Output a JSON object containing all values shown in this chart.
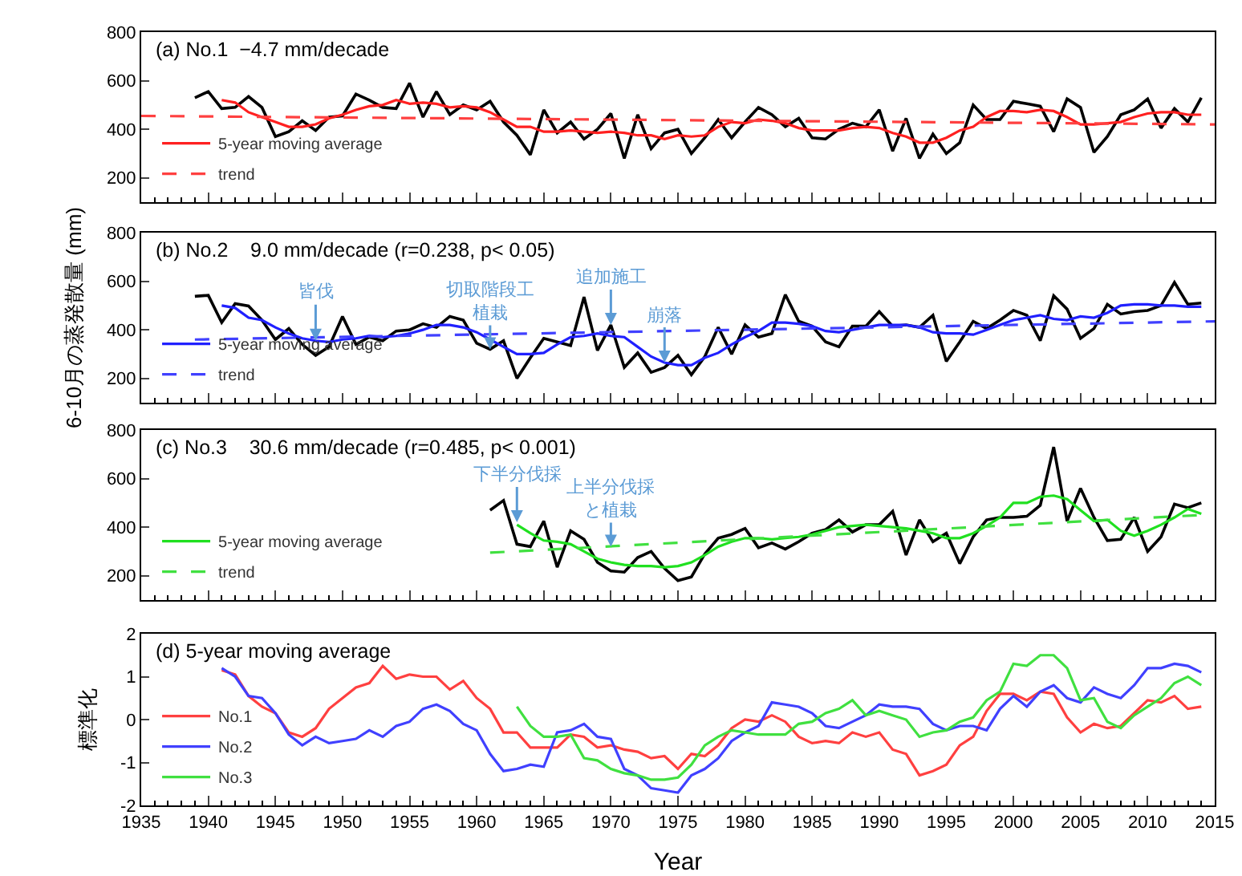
{
  "chart_data": [
    {
      "type": "line",
      "title": "(a) No.1  −4.7 mm/decade",
      "x": [
        1939,
        1940,
        1941,
        1942,
        1943,
        1944,
        1945,
        1946,
        1947,
        1948,
        1949,
        1950,
        1951,
        1952,
        1953,
        1954,
        1955,
        1956,
        1957,
        1958,
        1959,
        1960,
        1961,
        1962,
        1963,
        1964,
        1965,
        1966,
        1967,
        1968,
        1969,
        1970,
        1971,
        1972,
        1973,
        1974,
        1975,
        1976,
        1977,
        1978,
        1979,
        1980,
        1981,
        1982,
        1983,
        1984,
        1985,
        1986,
        1987,
        1988,
        1989,
        1990,
        1991,
        1992,
        1993,
        1994,
        1995,
        1996,
        1997,
        1998,
        1999,
        2000,
        2001,
        2002,
        2003,
        2004,
        2005,
        2006,
        2007,
        2008,
        2009,
        2010,
        2011,
        2012,
        2013,
        2014
      ],
      "series": [
        {
          "color": "#000000",
          "values": [
            530,
            555,
            485,
            490,
            535,
            490,
            370,
            390,
            435,
            395,
            450,
            455,
            545,
            520,
            490,
            485,
            590,
            450,
            555,
            460,
            500,
            480,
            515,
            430,
            375,
            295,
            480,
            385,
            430,
            360,
            400,
            465,
            280,
            460,
            320,
            385,
            400,
            300,
            365,
            440,
            365,
            430,
            490,
            460,
            410,
            445,
            365,
            360,
            400,
            425,
            410,
            480,
            310,
            445,
            280,
            380,
            300,
            345,
            500,
            440,
            440,
            515,
            505,
            495,
            390,
            525,
            490,
            305,
            370,
            460,
            480,
            525,
            405,
            485,
            430,
            530
          ]
        },
        {
          "name": "5-year moving average",
          "color": "#ff2020",
          "values": [
            null,
            null,
            520,
            510,
            470,
            450,
            430,
            410,
            410,
            420,
            445,
            460,
            480,
            495,
            500,
            520,
            505,
            510,
            505,
            490,
            495,
            490,
            470,
            440,
            410,
            410,
            390,
            390,
            395,
            390,
            385,
            390,
            385,
            375,
            375,
            360,
            375,
            370,
            375,
            410,
            430,
            425,
            440,
            435,
            425,
            405,
            395,
            395,
            395,
            405,
            410,
            405,
            385,
            370,
            345,
            345,
            365,
            395,
            410,
            450,
            475,
            475,
            470,
            480,
            475,
            450,
            420,
            420,
            425,
            430,
            450,
            465,
            470,
            470,
            460,
            460
          ]
        },
        {
          "name": "trend",
          "color": "#ff4040",
          "line_style": "dashed",
          "x": [
            1935,
            2015
          ],
          "values": [
            455,
            420
          ]
        }
      ],
      "xlim": [
        1935,
        2015
      ],
      "xticks": [
        1935,
        1940,
        1945,
        1950,
        1955,
        1960,
        1965,
        1970,
        1975,
        1980,
        1985,
        1990,
        1995,
        2000,
        2005,
        2010,
        2015
      ],
      "ylim": [
        100,
        800
      ],
      "yticks": [
        200,
        400,
        600,
        800
      ],
      "tick_labels": "y",
      "legend": "bottom left",
      "marker": "none"
    },
    {
      "type": "line",
      "title": "(b) No.2    9.0 mm/decade (r=0.238, p< 0.05)",
      "ylabel": "6-10月の蒸発散量 (mm)",
      "x": [
        1939,
        1940,
        1941,
        1942,
        1943,
        1944,
        1945,
        1946,
        1947,
        1948,
        1949,
        1950,
        1951,
        1952,
        1953,
        1954,
        1955,
        1956,
        1957,
        1958,
        1959,
        1960,
        1961,
        1962,
        1963,
        1964,
        1965,
        1966,
        1967,
        1968,
        1969,
        1970,
        1971,
        1972,
        1973,
        1974,
        1975,
        1976,
        1977,
        1978,
        1979,
        1980,
        1981,
        1982,
        1983,
        1984,
        1985,
        1986,
        1987,
        1988,
        1989,
        1990,
        1991,
        1992,
        1993,
        1994,
        1995,
        1996,
        1997,
        1998,
        1999,
        2000,
        2001,
        2002,
        2003,
        2004,
        2005,
        2006,
        2007,
        2008,
        2009,
        2010,
        2011,
        2012,
        2013,
        2014
      ],
      "series": [
        {
          "color": "#000000",
          "values": [
            538,
            542,
            430,
            508,
            498,
            440,
            360,
            405,
            340,
            295,
            330,
            455,
            340,
            370,
            355,
            395,
            400,
            425,
            410,
            455,
            440,
            345,
            320,
            355,
            200,
            285,
            365,
            350,
            335,
            535,
            315,
            420,
            245,
            305,
            225,
            245,
            295,
            215,
            290,
            410,
            300,
            420,
            370,
            385,
            545,
            435,
            415,
            350,
            330,
            415,
            415,
            475,
            415,
            420,
            410,
            460,
            270,
            350,
            435,
            405,
            440,
            480,
            460,
            355,
            540,
            485,
            365,
            405,
            505,
            465,
            475,
            480,
            500,
            595,
            505,
            510
          ]
        },
        {
          "name": "5-year moving average",
          "color": "#2020ff",
          "values": [
            null,
            null,
            500,
            490,
            450,
            440,
            410,
            385,
            365,
            355,
            350,
            360,
            365,
            375,
            370,
            375,
            385,
            400,
            420,
            420,
            410,
            390,
            360,
            330,
            300,
            300,
            305,
            340,
            370,
            375,
            385,
            375,
            370,
            330,
            290,
            265,
            255,
            255,
            285,
            305,
            340,
            370,
            395,
            430,
            430,
            425,
            415,
            395,
            390,
            400,
            410,
            420,
            420,
            420,
            410,
            390,
            385,
            385,
            380,
            400,
            420,
            440,
            450,
            460,
            445,
            440,
            455,
            450,
            470,
            500,
            505,
            505,
            500,
            500,
            495,
            495
          ]
        },
        {
          "name": "trend",
          "color": "#4040ff",
          "line_style": "dashed",
          "x": [
            1939,
            2015
          ],
          "values": [
            360,
            435
          ]
        }
      ],
      "annotations": [
        {
          "text": "皆伐",
          "x": 1948,
          "y": 355
        },
        {
          "text": "切取階段工植栽",
          "x": 1961,
          "y": 320
        },
        {
          "text": "追加施工",
          "x": 1970,
          "y": 420
        },
        {
          "text": "崩落",
          "x": 1974,
          "y": 265
        }
      ],
      "xlim": [
        1935,
        2015
      ],
      "xticks": [
        1935,
        1940,
        1945,
        1950,
        1955,
        1960,
        1965,
        1970,
        1975,
        1980,
        1985,
        1990,
        1995,
        2000,
        2005,
        2010,
        2015
      ],
      "ylim": [
        100,
        800
      ],
      "yticks": [
        200,
        400,
        600,
        800
      ],
      "tick_labels": "y",
      "legend": "bottom left",
      "marker": "none"
    },
    {
      "type": "line",
      "title": "(c) No.3    30.6 mm/decade (r=0.485, p< 0.001)",
      "x": [
        1961,
        1962,
        1963,
        1964,
        1965,
        1966,
        1967,
        1968,
        1969,
        1970,
        1971,
        1972,
        1973,
        1974,
        1975,
        1976,
        1977,
        1978,
        1979,
        1980,
        1981,
        1982,
        1983,
        1984,
        1985,
        1986,
        1987,
        1988,
        1989,
        1990,
        1991,
        1992,
        1993,
        1994,
        1995,
        1996,
        1997,
        1998,
        1999,
        2000,
        2001,
        2002,
        2003,
        2004,
        2005,
        2006,
        2007,
        2008,
        2009,
        2010,
        2011,
        2012,
        2013,
        2014
      ],
      "series": [
        {
          "color": "#000000",
          "values": [
            470,
            510,
            330,
            320,
            425,
            235,
            385,
            350,
            255,
            220,
            215,
            275,
            300,
            230,
            180,
            195,
            290,
            355,
            370,
            395,
            315,
            335,
            310,
            340,
            375,
            390,
            430,
            380,
            410,
            410,
            465,
            285,
            430,
            340,
            375,
            250,
            360,
            430,
            440,
            440,
            445,
            490,
            730,
            425,
            560,
            440,
            345,
            350,
            440,
            300,
            360,
            495,
            480,
            500
          ]
        },
        {
          "name": "5-year moving average",
          "color": "#20e020",
          "values": [
            null,
            null,
            410,
            375,
            345,
            340,
            330,
            300,
            270,
            255,
            245,
            240,
            240,
            235,
            240,
            255,
            285,
            320,
            340,
            355,
            355,
            350,
            355,
            360,
            370,
            385,
            400,
            405,
            410,
            405,
            400,
            395,
            385,
            375,
            355,
            355,
            375,
            405,
            440,
            500,
            500,
            525,
            530,
            515,
            470,
            425,
            430,
            385,
            365,
            385,
            410,
            440,
            475,
            455
          ]
        },
        {
          "name": "trend",
          "color": "#40e040",
          "line_style": "dashed",
          "x": [
            1961,
            2014
          ],
          "values": [
            295,
            450
          ]
        }
      ],
      "annotations": [
        {
          "text": "下半分伐採",
          "x": 1963,
          "y": 420
        },
        {
          "text": "上半分伐採と植栽",
          "x": 1970,
          "y": 320
        }
      ],
      "xlim": [
        1935,
        2015
      ],
      "xticks": [
        1935,
        1940,
        1945,
        1950,
        1955,
        1960,
        1965,
        1970,
        1975,
        1980,
        1985,
        1990,
        1995,
        2000,
        2005,
        2010,
        2015
      ],
      "ylim": [
        100,
        800
      ],
      "yticks": [
        200,
        400,
        600,
        800
      ],
      "tick_labels": "y",
      "legend": "bottom left",
      "marker": "none"
    },
    {
      "type": "line",
      "title": "(d) 5-year moving average",
      "xlabel": "Year",
      "ylabel": "標準化",
      "x": [
        1941,
        1942,
        1943,
        1944,
        1945,
        1946,
        1947,
        1948,
        1949,
        1950,
        1951,
        1952,
        1953,
        1954,
        1955,
        1956,
        1957,
        1958,
        1959,
        1960,
        1961,
        1962,
        1963,
        1964,
        1965,
        1966,
        1967,
        1968,
        1969,
        1970,
        1971,
        1972,
        1973,
        1974,
        1975,
        1976,
        1977,
        1978,
        1979,
        1980,
        1981,
        1982,
        1983,
        1984,
        1985,
        1986,
        1987,
        1988,
        1989,
        1990,
        1991,
        1992,
        1993,
        1994,
        1995,
        1996,
        1997,
        1998,
        1999,
        2000,
        2001,
        2002,
        2003,
        2004,
        2005,
        2006,
        2007,
        2008,
        2009,
        2010,
        2011,
        2012,
        2013,
        2014
      ],
      "series": [
        {
          "name": "No.1",
          "color": "#ff4040",
          "values": [
            1.15,
            1.05,
            0.55,
            0.3,
            0.15,
            -0.3,
            -0.4,
            -0.2,
            0.25,
            0.5,
            0.75,
            0.85,
            1.25,
            0.95,
            1.05,
            1.0,
            1.0,
            0.7,
            0.9,
            0.5,
            0.25,
            -0.3,
            -0.3,
            -0.65,
            -0.65,
            -0.65,
            -0.35,
            -0.4,
            -0.65,
            -0.6,
            -0.7,
            -0.75,
            -0.9,
            -0.85,
            -1.15,
            -0.8,
            -0.85,
            -0.6,
            -0.2,
            0.0,
            -0.05,
            0.1,
            -0.05,
            -0.4,
            -0.55,
            -0.5,
            -0.55,
            -0.3,
            -0.4,
            -0.3,
            -0.7,
            -0.8,
            -1.3,
            -1.2,
            -1.05,
            -0.6,
            -0.4,
            0.2,
            0.6,
            0.6,
            0.45,
            0.65,
            0.6,
            0.05,
            -0.3,
            -0.1,
            -0.2,
            -0.15,
            0.15,
            0.45,
            0.4,
            0.55,
            0.25,
            0.3
          ]
        },
        {
          "name": "No.2",
          "color": "#4040ff",
          "values": [
            1.2,
            1.0,
            0.55,
            0.5,
            0.15,
            -0.35,
            -0.6,
            -0.4,
            -0.55,
            -0.5,
            -0.45,
            -0.25,
            -0.4,
            -0.15,
            -0.05,
            0.25,
            0.35,
            0.2,
            -0.1,
            -0.25,
            -0.8,
            -1.2,
            -1.15,
            -1.05,
            -1.1,
            -0.3,
            -0.25,
            -0.1,
            -0.4,
            -0.45,
            -1.15,
            -1.3,
            -1.6,
            -1.65,
            -1.7,
            -1.3,
            -1.15,
            -0.9,
            -0.5,
            -0.3,
            -0.15,
            0.4,
            0.35,
            0.3,
            0.15,
            -0.15,
            -0.2,
            -0.05,
            0.1,
            0.35,
            0.3,
            0.3,
            0.25,
            -0.1,
            -0.25,
            -0.15,
            -0.15,
            -0.25,
            0.25,
            0.55,
            0.3,
            0.65,
            0.8,
            0.5,
            0.4,
            0.75,
            0.6,
            0.5,
            0.8,
            1.2,
            1.2,
            1.3,
            1.25,
            1.1
          ]
        },
        {
          "name": "No.3",
          "color": "#40e040",
          "values": [
            null,
            null,
            null,
            null,
            null,
            null,
            null,
            null,
            null,
            null,
            null,
            null,
            null,
            null,
            null,
            null,
            null,
            null,
            null,
            null,
            null,
            null,
            0.3,
            -0.15,
            -0.4,
            -0.4,
            -0.35,
            -0.9,
            -0.95,
            -1.15,
            -1.25,
            -1.3,
            -1.4,
            -1.4,
            -1.35,
            -1.05,
            -0.6,
            -0.4,
            -0.25,
            -0.3,
            -0.35,
            -0.35,
            -0.35,
            -0.1,
            -0.05,
            0.15,
            0.25,
            0.45,
            0.1,
            0.2,
            0.1,
            0.0,
            -0.4,
            -0.3,
            -0.25,
            -0.05,
            0.05,
            0.45,
            0.65,
            1.3,
            1.25,
            1.5,
            1.5,
            1.2,
            0.45,
            0.5,
            -0.05,
            -0.2,
            0.1,
            0.3,
            0.5,
            0.85,
            1.0,
            0.8
          ]
        }
      ],
      "xlim": [
        1935,
        2015
      ],
      "xticks": [
        1935,
        1940,
        1945,
        1950,
        1955,
        1960,
        1965,
        1970,
        1975,
        1980,
        1985,
        1990,
        1995,
        2000,
        2005,
        2010,
        2015
      ],
      "ylim": [
        -2,
        2
      ],
      "yticks": [
        -2,
        -1,
        0,
        1,
        2
      ],
      "legend": "bottom left",
      "marker": "none"
    }
  ]
}
